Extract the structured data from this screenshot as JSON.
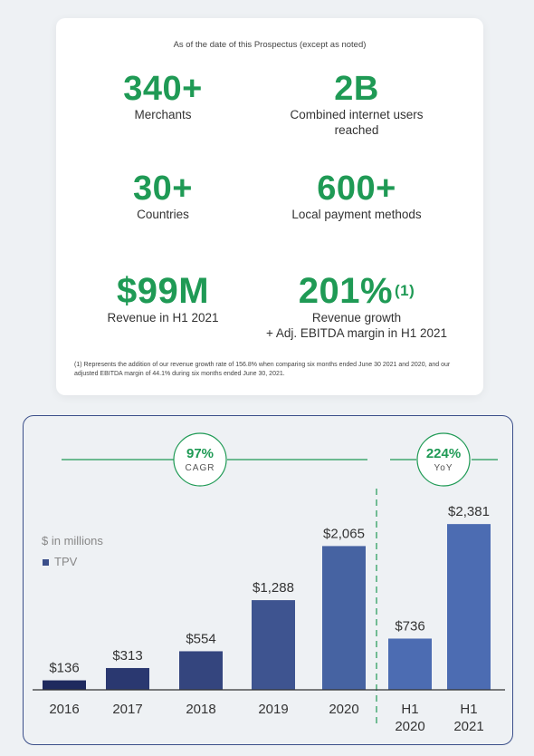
{
  "stats_card": {
    "subtitle": "As of the date of this Prospectus (except as noted)",
    "stats": [
      {
        "value": "340+",
        "label_lines": [
          "Merchants"
        ]
      },
      {
        "value": "2B",
        "label_lines": [
          "Combined internet users",
          "reached"
        ]
      },
      {
        "value": "30+",
        "label_lines": [
          "Countries"
        ]
      },
      {
        "value": "600+",
        "label_lines": [
          "Local payment methods"
        ]
      },
      {
        "value": "$99M",
        "label_lines": [
          "Revenue in H1 2021"
        ]
      },
      {
        "value": "201%",
        "sup": "(1)",
        "label_lines": [
          "Revenue growth",
          "+ Adj. EBITDA margin in H1 2021"
        ]
      }
    ],
    "footnote": "(1) Represents the addition of our revenue growth rate of 156.8% when comparing six months ended June 30 2021 and 2020, and our adjusted EBITDA margin of 44.1% during six months ended June 30, 2021."
  },
  "chart_data": {
    "type": "bar",
    "unit_note": "$ in millions",
    "legend": [
      {
        "name": "TPV",
        "color": "#3b4f8a"
      }
    ],
    "categories": [
      "2016",
      "2017",
      "2018",
      "2019",
      "2020",
      "H1\n2020",
      "H1\n2021"
    ],
    "values": [
      136,
      313,
      554,
      1288,
      2065,
      736,
      2381
    ],
    "value_labels": [
      "$136",
      "$313",
      "$554",
      "$1,288",
      "$2,065",
      "$736",
      "$2,381"
    ],
    "series": [
      {
        "name": "TPV",
        "values": [
          136,
          313,
          554,
          1288,
          2065,
          736,
          2381
        ]
      }
    ],
    "bar_colors": [
      "#1f2a5e",
      "#2a3870",
      "#34457e",
      "#3e5490",
      "#4663a2",
      "#4c6cb2",
      "#4c6cb2"
    ],
    "ylim": [
      0,
      2500
    ],
    "badges": [
      {
        "value": "97%",
        "label": "CAGR"
      },
      {
        "value": "224%",
        "label": "YoY"
      }
    ],
    "accent_green": "#1f9a55"
  }
}
